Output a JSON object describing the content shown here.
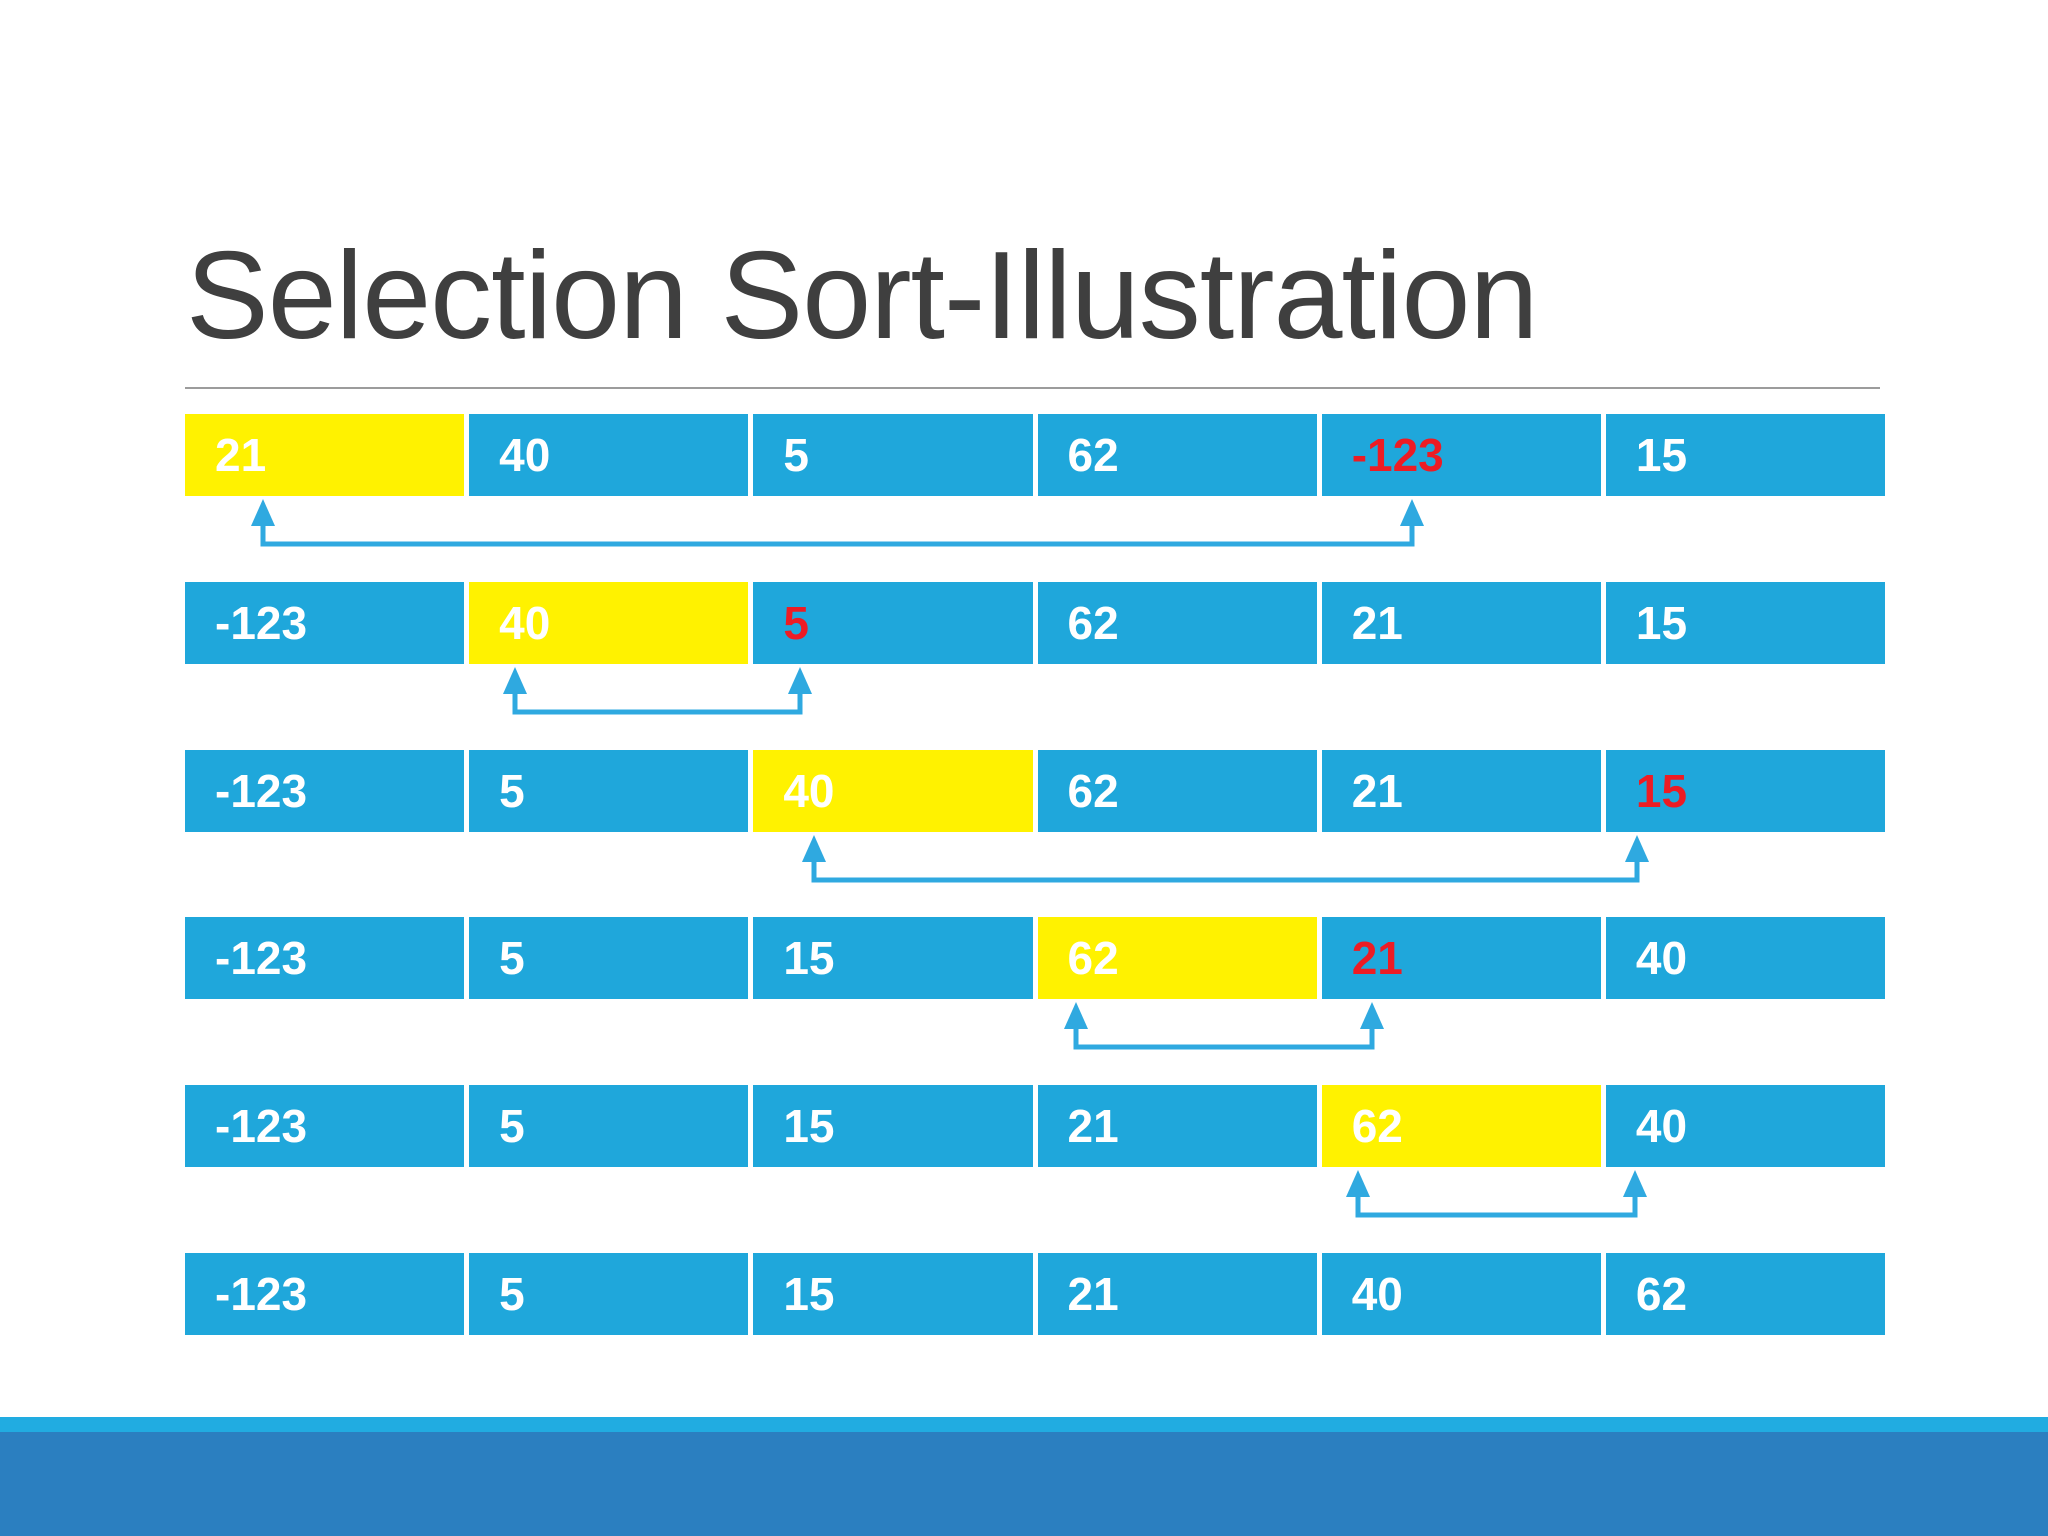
{
  "slide": {
    "title": "Selection Sort-Illustration",
    "colors": {
      "cell_blue": "#1FA7DB",
      "highlight_yellow": "#FFF200",
      "text_white": "#FFFFFF",
      "text_red": "#ED1C24",
      "arrow_blue": "#2FA9E0",
      "title_gray": "#3F3F3F",
      "separator_gray": "#9C9C9C",
      "footer_light_blue": "#21ACE1",
      "footer_dark_blue": "#2B7FC0"
    },
    "steps": [
      {
        "cells": [
          {
            "text": "21",
            "bg": "yellow",
            "color": "white"
          },
          {
            "text": "40",
            "bg": "blue",
            "color": "white"
          },
          {
            "text": "5",
            "bg": "blue",
            "color": "white"
          },
          {
            "text": "62",
            "bg": "blue",
            "color": "white"
          },
          {
            "text": "-123",
            "bg": "blue",
            "color": "red"
          },
          {
            "text": "15",
            "bg": "blue",
            "color": "white"
          }
        ],
        "swap": [
          0,
          4
        ]
      },
      {
        "cells": [
          {
            "text": "-123",
            "bg": "blue",
            "color": "white"
          },
          {
            "text": "40",
            "bg": "yellow",
            "color": "white"
          },
          {
            "text": "5",
            "bg": "blue",
            "color": "red"
          },
          {
            "text": "62",
            "bg": "blue",
            "color": "white"
          },
          {
            "text": "21",
            "bg": "blue",
            "color": "white"
          },
          {
            "text": "15",
            "bg": "blue",
            "color": "white"
          }
        ],
        "swap": [
          1,
          2
        ]
      },
      {
        "cells": [
          {
            "text": "-123",
            "bg": "blue",
            "color": "white"
          },
          {
            "text": "5",
            "bg": "blue",
            "color": "white"
          },
          {
            "text": "40",
            "bg": "yellow",
            "color": "white"
          },
          {
            "text": "62",
            "bg": "blue",
            "color": "white"
          },
          {
            "text": "21",
            "bg": "blue",
            "color": "white"
          },
          {
            "text": "15",
            "bg": "blue",
            "color": "red"
          }
        ],
        "swap": [
          2,
          5
        ]
      },
      {
        "cells": [
          {
            "text": "-123",
            "bg": "blue",
            "color": "white"
          },
          {
            "text": "5",
            "bg": "blue",
            "color": "white"
          },
          {
            "text": "15",
            "bg": "blue",
            "color": "white"
          },
          {
            "text": "62",
            "bg": "yellow",
            "color": "white"
          },
          {
            "text": "21",
            "bg": "blue",
            "color": "red"
          },
          {
            "text": "40",
            "bg": "blue",
            "color": "white"
          }
        ],
        "swap": [
          3,
          4
        ]
      },
      {
        "cells": [
          {
            "text": "-123",
            "bg": "blue",
            "color": "white"
          },
          {
            "text": "5",
            "bg": "blue",
            "color": "white"
          },
          {
            "text": "15",
            "bg": "blue",
            "color": "white"
          },
          {
            "text": "21",
            "bg": "blue",
            "color": "white"
          },
          {
            "text": "62",
            "bg": "yellow",
            "color": "white"
          },
          {
            "text": "40",
            "bg": "blue",
            "color": "white"
          }
        ],
        "swap": [
          4,
          5
        ]
      },
      {
        "cells": [
          {
            "text": "-123",
            "bg": "blue",
            "color": "white"
          },
          {
            "text": "5",
            "bg": "blue",
            "color": "white"
          },
          {
            "text": "15",
            "bg": "blue",
            "color": "white"
          },
          {
            "text": "21",
            "bg": "blue",
            "color": "white"
          },
          {
            "text": "40",
            "bg": "blue",
            "color": "white"
          },
          {
            "text": "62",
            "bg": "blue",
            "color": "white"
          }
        ],
        "swap": null
      }
    ]
  }
}
